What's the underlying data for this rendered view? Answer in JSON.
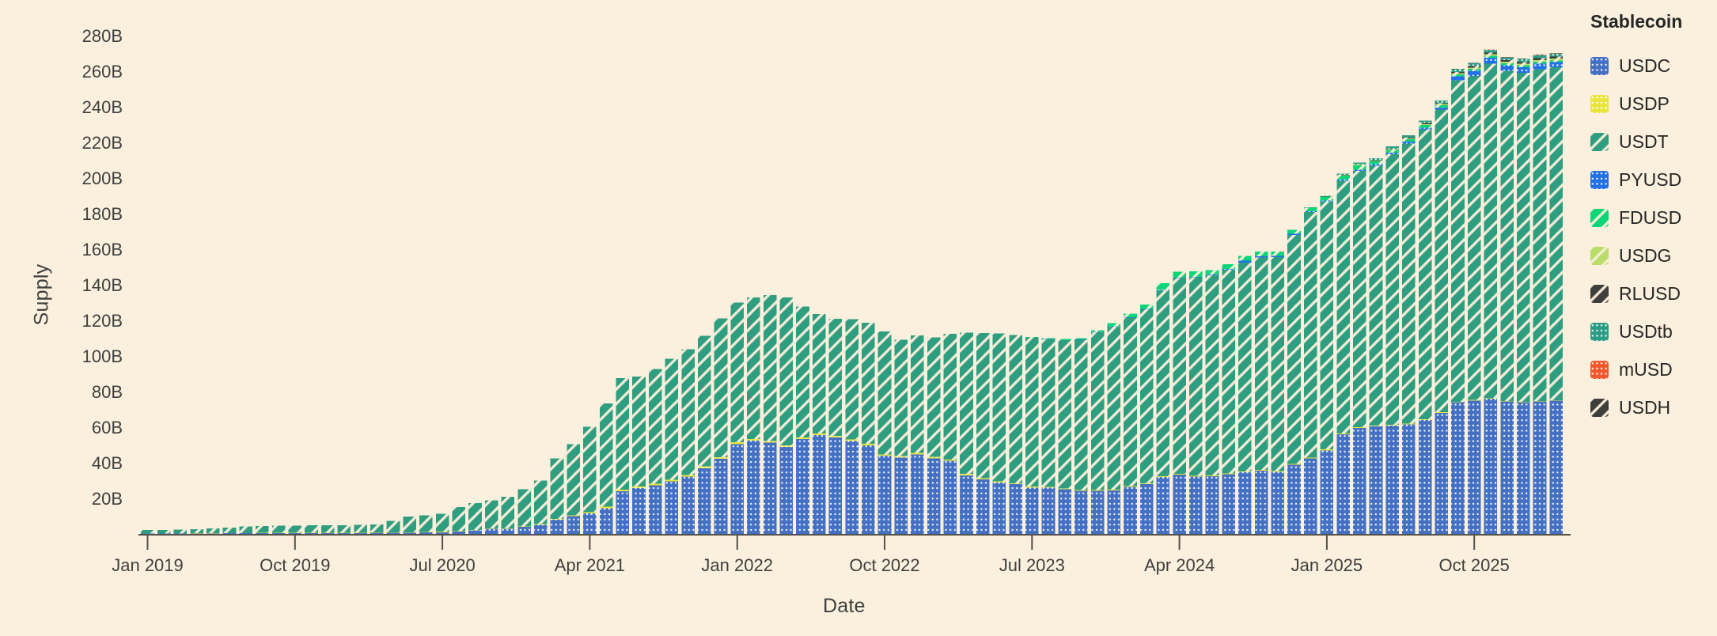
{
  "colors": {
    "background": "#faf0dd",
    "axis_line": "#55514b",
    "tick_text": "#3f3f3f",
    "pattern_dot": "#ffffff",
    "pattern_hatch": "#f6ecd9"
  },
  "chart_data": {
    "type": "bar",
    "stacked": true,
    "title": "",
    "xlabel": "Date",
    "ylabel": "Supply",
    "legend_title": "Stablecoin",
    "legend_position": "right",
    "grid": false,
    "x_interval": "month",
    "x_start": "Jan 2019",
    "x_end": "Mar 2026",
    "n_months": 87,
    "x_tick_indices": [
      0,
      9,
      18,
      27,
      36,
      45,
      54,
      63,
      72,
      81
    ],
    "x_tick_labels": [
      "Jan 2019",
      "Oct 2019",
      "Jul 2020",
      "Apr 2021",
      "Jan 2022",
      "Oct 2022",
      "Jul 2023",
      "Apr 2024",
      "Jan 2025",
      "Oct 2025"
    ],
    "y_unit_suffix": "B",
    "y_ticks": [
      20,
      40,
      60,
      80,
      100,
      120,
      140,
      160,
      180,
      200,
      220,
      240,
      260,
      280
    ],
    "ylim": [
      0,
      290
    ],
    "value_unit": "billions of dollars",
    "series": [
      {
        "name": "USDC",
        "color": "#4470c4",
        "pattern": "dots",
        "start_index": 0,
        "values": [
          0.25,
          0.25,
          0.25,
          0.3,
          0.3,
          0.35,
          0.4,
          0.45,
          0.45,
          0.45,
          0.45,
          0.5,
          0.5,
          0.45,
          0.6,
          0.7,
          0.7,
          0.9,
          1.0,
          1.4,
          1.9,
          2.8,
          2.9,
          3.9,
          5.2,
          8.0,
          10.0,
          11.5,
          14.5,
          24.1,
          25.7,
          27.3,
          29.5,
          32.3,
          37.0,
          42.2,
          50.5,
          52.4,
          51.3,
          48.8,
          53.3,
          55.6,
          54.2,
          52.2,
          49.7,
          43.9,
          43.0,
          44.6,
          42.5,
          41.1,
          33.0,
          30.7,
          29.0,
          27.9,
          26.1,
          26.0,
          25.1,
          24.2,
          24.3,
          24.4,
          26.4,
          28.1,
          32.1,
          33.4,
          32.3,
          32.5,
          33.6,
          34.6,
          35.6,
          34.9,
          38.9,
          42.4,
          47.0,
          56.0,
          59.5,
          60.5,
          61.0,
          61.5,
          64.0,
          68.0,
          74.0,
          75.0,
          76.0,
          74.5,
          74.0,
          74.5,
          75.0
        ]
      },
      {
        "name": "USDP",
        "color": "#e9e53e",
        "pattern": "dots",
        "start_index": 0,
        "values": [
          0.05,
          0.05,
          0.06,
          0.07,
          0.08,
          0.1,
          0.12,
          0.14,
          0.16,
          0.18,
          0.2,
          0.2,
          0.2,
          0.2,
          0.2,
          0.22,
          0.24,
          0.24,
          0.25,
          0.25,
          0.25,
          0.25,
          0.26,
          0.25,
          0.3,
          0.35,
          0.48,
          0.7,
          0.8,
          0.85,
          0.9,
          0.94,
          0.95,
          0.92,
          0.9,
          0.95,
          0.95,
          0.98,
          1.0,
          0.99,
          0.95,
          0.9,
          0.9,
          0.9,
          0.9,
          0.85,
          0.8,
          0.85,
          0.88,
          0.78,
          0.7,
          0.65,
          0.6,
          0.58,
          0.55,
          0.5,
          0.5,
          0.48,
          0.45,
          0.45,
          0.45,
          0.43,
          0.4,
          0.38,
          0.4,
          0.42,
          0.45,
          0.48,
          0.5,
          0.5,
          0.49,
          0.49,
          0.49,
          0.5,
          0.5,
          0.45,
          0.42,
          0.4,
          0.38,
          0.36,
          0.33,
          0.3,
          0.25,
          0.2,
          0.2,
          0.2,
          0.2
        ]
      },
      {
        "name": "USDT",
        "color": "#2f9e80",
        "pattern": "hatch",
        "start_index": 0,
        "values": [
          2.0,
          2.0,
          2.1,
          2.3,
          2.8,
          3.1,
          3.6,
          3.9,
          4.0,
          4.1,
          4.2,
          4.1,
          4.3,
          4.4,
          4.6,
          6.4,
          8.8,
          9.2,
          10.0,
          13.4,
          15.2,
          15.9,
          17.8,
          21.0,
          24.4,
          34.0,
          40.0,
          48.0,
          58.0,
          62.5,
          61.8,
          64.5,
          68.0,
          70.5,
          73.5,
          78.0,
          78.5,
          79.5,
          82.0,
          83.2,
          73.5,
          67.0,
          65.9,
          67.6,
          68.0,
          69.1,
          65.3,
          66.2,
          67.0,
          70.5,
          79.5,
          81.5,
          83.1,
          83.3,
          83.8,
          82.9,
          83.2,
          84.5,
          88.6,
          91.7,
          94.7,
          97.7,
          104.5,
          110.0,
          111.5,
          112.5,
          114.4,
          117.4,
          119.2,
          120.2,
          128.7,
          137.9,
          139.4,
          142.0,
          144.0,
          146.0,
          152.0,
          157.5,
          163.0,
          170.0,
          180.5,
          182.0,
          188.0,
          185.5,
          185.0,
          186.5,
          187.0
        ]
      },
      {
        "name": "PYUSD",
        "color": "#2270e8",
        "pattern": "dots",
        "start_index": 55,
        "values": [
          0.05,
          0.1,
          0.15,
          0.2,
          0.2,
          0.3,
          0.3,
          0.3,
          0.25,
          0.3,
          0.4,
          0.55,
          1.0,
          0.7,
          0.6,
          0.55,
          0.5,
          0.5,
          0.6,
          0.7,
          0.8,
          0.9,
          1.0,
          0.95,
          1.2,
          2.2,
          2.9,
          3.3,
          3.1,
          3.0,
          3.0,
          2.9
        ]
      },
      {
        "name": "FDUSD",
        "color": "#0bd678",
        "pattern": "hatch",
        "start_index": 54,
        "values": [
          0.3,
          0.45,
          0.55,
          0.65,
          1.0,
          1.8,
          1.9,
          2.3,
          3.5,
          3.3,
          3.0,
          2.4,
          2.6,
          2.8,
          2.7,
          2.5,
          2.3,
          2.0,
          2.1,
          2.3,
          2.5,
          1.5,
          1.3,
          1.4,
          1.5,
          1.4,
          1.3,
          1.2,
          1.15,
          1.1,
          1.1,
          1.1,
          1.0
        ]
      },
      {
        "name": "USDG",
        "color": "#b9dd67",
        "pattern": "hatch",
        "start_index": 70,
        "values": [
          0.05,
          0.1,
          0.15,
          0.2,
          0.25,
          0.3,
          0.35,
          0.4,
          0.5,
          0.55,
          0.6,
          0.7,
          0.8,
          0.85,
          0.9,
          0.95,
          1.0
        ]
      },
      {
        "name": "RLUSD",
        "color": "#3e3e3c",
        "pattern": "hatch",
        "start_index": 71,
        "values": [
          0.05,
          0.1,
          0.15,
          0.2,
          0.3,
          0.35,
          0.45,
          0.5,
          0.6,
          0.7,
          0.75,
          0.85,
          0.9,
          0.95,
          1.0,
          1.05
        ]
      },
      {
        "name": "USDtb",
        "color": "#2a9d84",
        "pattern": "dots",
        "start_index": 71,
        "values": [
          0.1,
          0.3,
          0.8,
          1.0,
          1.2,
          1.4,
          1.45,
          1.45,
          1.5,
          1.55,
          1.6,
          1.7,
          1.7,
          1.7,
          1.75,
          1.8
        ]
      },
      {
        "name": "mUSD",
        "color": "#f4572b",
        "pattern": "dots",
        "start_index": 80,
        "values": [
          0.03,
          0.06,
          0.09,
          0.12,
          0.14,
          0.16,
          0.18
        ]
      },
      {
        "name": "USDH",
        "color": "#3e3e3c",
        "pattern": "hatch",
        "start_index": 80,
        "values": [
          0.03,
          0.05,
          0.06,
          0.07,
          0.07,
          0.08,
          0.08
        ]
      }
    ]
  }
}
